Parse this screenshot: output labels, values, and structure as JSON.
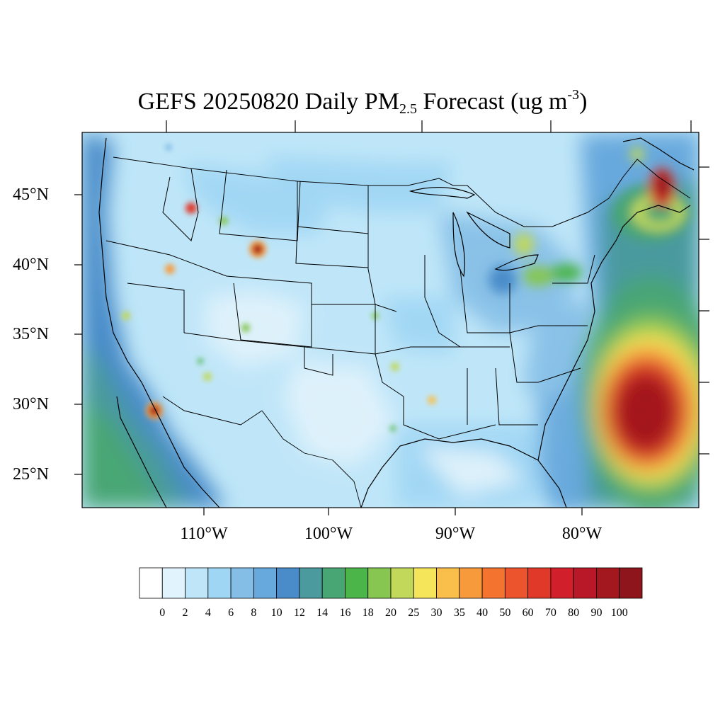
{
  "title": {
    "main": "GEFS 20250820 Daily PM",
    "subscript": "2.5",
    "suffix": " Forecast (ug m",
    "superscript": "-3",
    "close": ")"
  },
  "axes": {
    "lat_labels": [
      "45°N",
      "40°N",
      "35°N",
      "30°N",
      "25°N"
    ],
    "lon_labels": [
      "110°W",
      "100°W",
      "90°W",
      "80°W"
    ]
  },
  "colorbar": {
    "levels": [
      "0",
      "2",
      "4",
      "6",
      "8",
      "10",
      "12",
      "14",
      "16",
      "18",
      "20",
      "25",
      "30",
      "35",
      "40",
      "50",
      "60",
      "70",
      "80",
      "90",
      "100"
    ],
    "colors": [
      "#ffffff",
      "#e1f3fc",
      "#bfe6f8",
      "#9fd6f4",
      "#84bee6",
      "#68a9dd",
      "#4a8cc9",
      "#4a9a9e",
      "#48a675",
      "#4bb54a",
      "#86c651",
      "#c1d85a",
      "#f4e55a",
      "#f9bf4a",
      "#f79a3c",
      "#f4732e",
      "#eb542c",
      "#e0392a",
      "#d21f2c",
      "#b81827",
      "#a3171f",
      "#8e151c"
    ]
  },
  "field": {
    "background_color": "#bfe6f8",
    "ocean_east_color": "#a9d5f1",
    "pacific_color": "#4a8cc9"
  }
}
